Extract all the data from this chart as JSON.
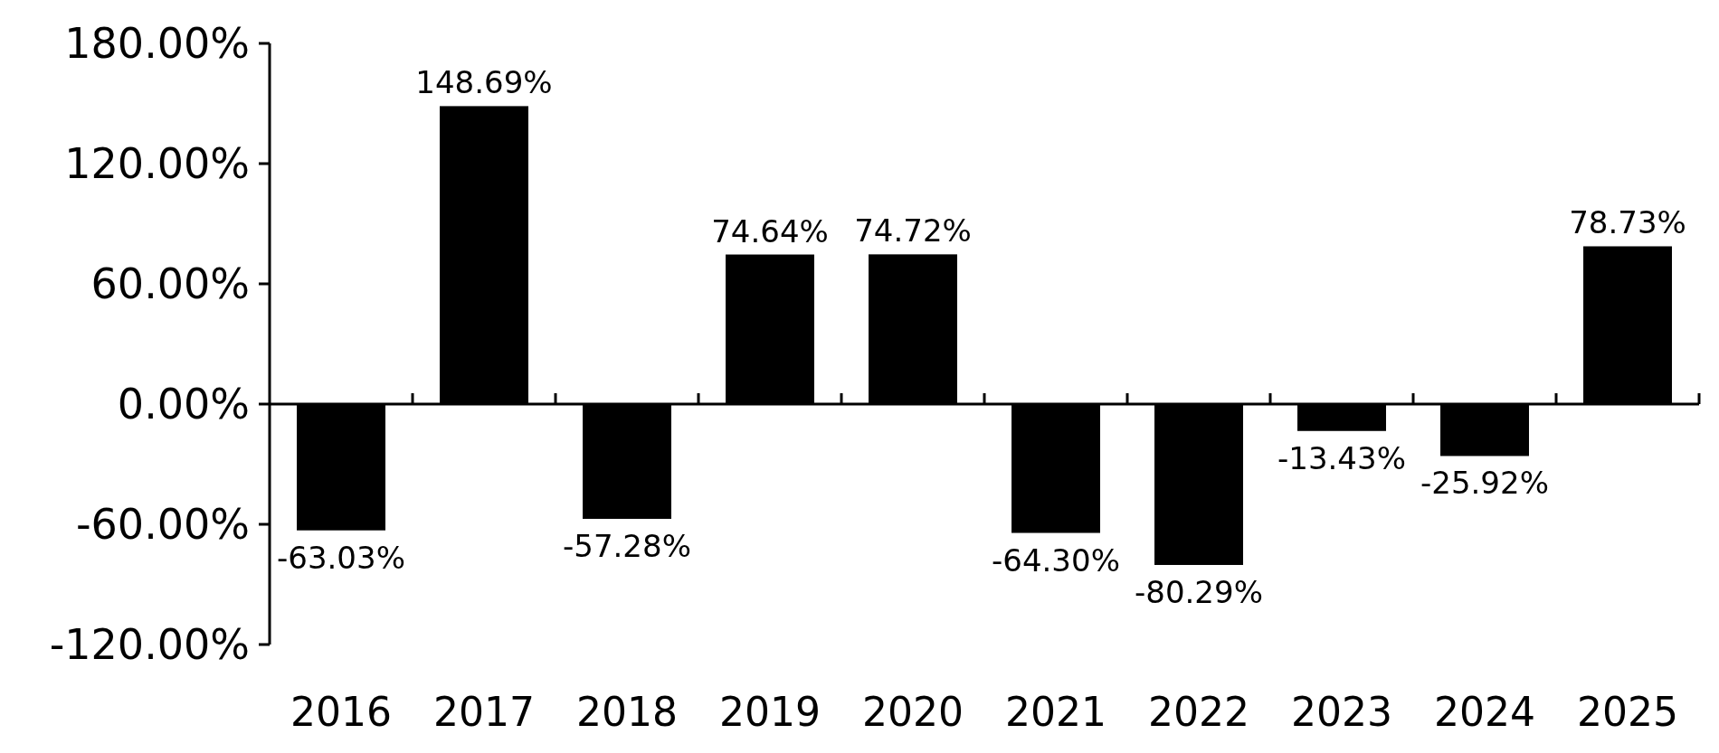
{
  "chart_data": {
    "type": "bar",
    "categories": [
      "2016",
      "2017",
      "2018",
      "2019",
      "2020",
      "2021",
      "2022",
      "2023",
      "2024",
      "2025"
    ],
    "values": [
      -63.03,
      148.69,
      -57.28,
      74.64,
      74.72,
      -64.3,
      -80.29,
      -13.43,
      -25.92,
      78.73
    ],
    "value_labels": [
      "-63.03%",
      "148.69%",
      "-57.28%",
      "74.64%",
      "74.72%",
      "-64.30%",
      "-80.29%",
      "-13.43%",
      "-25.92%",
      "78.73%"
    ],
    "color": "#000000",
    "ylim": [
      -120,
      180
    ],
    "yticks": [
      {
        "value": -120,
        "label": "-120.00%"
      },
      {
        "value": -60,
        "label": "-60.00%"
      },
      {
        "value": 0,
        "label": "0.00%"
      },
      {
        "value": 60,
        "label": "60.00%"
      },
      {
        "value": 120,
        "label": "120.00%"
      },
      {
        "value": 180,
        "label": "180.00%"
      }
    ]
  }
}
